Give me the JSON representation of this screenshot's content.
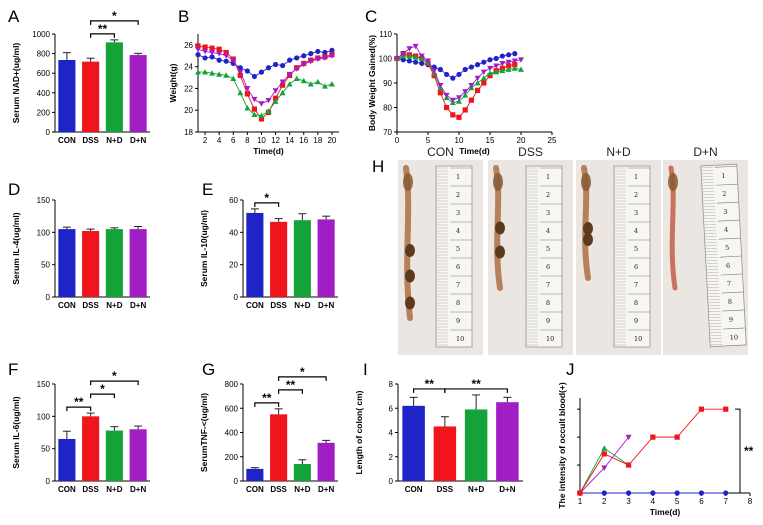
{
  "colors": {
    "CON": "#1f24c8",
    "DSS": "#f0141c",
    "N+D": "#15a339",
    "D+N": "#a11ec4",
    "err": "#222222"
  },
  "chart_data": [
    {
      "id": "A",
      "type": "bar",
      "panel_label": "A",
      "categories": [
        "CON",
        "DSS",
        "N+D",
        "D+N"
      ],
      "values": [
        735,
        718,
        915,
        785
      ],
      "errors": [
        75,
        35,
        25,
        18
      ],
      "ylabel": "Serum NAD+(ug/ml)",
      "ylim": [
        0,
        1000
      ],
      "yticks": [
        "0",
        "200",
        "400",
        "600",
        "800",
        "1000"
      ],
      "sig": [
        {
          "from": 1,
          "to": 2,
          "label": "**",
          "level": 1
        },
        {
          "from": 1,
          "to": 3,
          "label": "*",
          "level": 2
        }
      ]
    },
    {
      "id": "D",
      "type": "bar",
      "panel_label": "D",
      "categories": [
        "CON",
        "DSS",
        "N+D",
        "D+N"
      ],
      "values": [
        105,
        102,
        105,
        105
      ],
      "errors": [
        3,
        3,
        2,
        4
      ],
      "ylabel": "Serum IL-4(ug/ml)",
      "ylim": [
        0,
        150
      ],
      "yticks": [
        "0",
        "50",
        "100",
        "150"
      ],
      "sig": []
    },
    {
      "id": "E",
      "type": "bar",
      "panel_label": "E",
      "categories": [
        "CON",
        "DSS",
        "N+D",
        "D+N"
      ],
      "values": [
        52,
        46.5,
        47.5,
        48
      ],
      "errors": [
        2.5,
        2,
        4,
        2
      ],
      "ylabel": "Serum IL-10(ug/ml)",
      "ylim": [
        0,
        60
      ],
      "yticks": [
        "0",
        "20",
        "40",
        "60"
      ],
      "sig": [
        {
          "from": 0,
          "to": 1,
          "label": "*",
          "level": 1
        }
      ]
    },
    {
      "id": "F",
      "type": "bar",
      "panel_label": "F",
      "categories": [
        "CON",
        "DSS",
        "N+D",
        "D+N"
      ],
      "values": [
        65,
        100,
        78,
        80
      ],
      "errors": [
        12,
        5,
        6,
        5
      ],
      "ylabel": "Serum IL-6(ug/ml)",
      "ylim": [
        0,
        150
      ],
      "yticks": [
        "0",
        "50",
        "100",
        "150"
      ],
      "sig": [
        {
          "from": 0,
          "to": 1,
          "label": "**",
          "level": 1
        },
        {
          "from": 1,
          "to": 2,
          "label": "*",
          "level": 2
        },
        {
          "from": 1,
          "to": 3,
          "label": "*",
          "level": 3
        }
      ]
    },
    {
      "id": "G",
      "type": "bar",
      "panel_label": "G",
      "categories": [
        "CON",
        "DSS",
        "N+D",
        "D+N"
      ],
      "values": [
        100,
        550,
        140,
        315
      ],
      "errors": [
        10,
        45,
        35,
        20
      ],
      "ylabel": "SerumTNF-<(ug/ml)",
      "ylim": [
        0,
        800
      ],
      "yticks": [
        "0",
        "200",
        "400",
        "600",
        "800"
      ],
      "sig": [
        {
          "from": 0,
          "to": 1,
          "label": "**",
          "level": 1
        },
        {
          "from": 1,
          "to": 2,
          "label": "**",
          "level": 2
        },
        {
          "from": 1,
          "to": 3,
          "label": "*",
          "level": 3
        }
      ]
    },
    {
      "id": "I",
      "type": "bar",
      "panel_label": "I",
      "categories": [
        "CON",
        "DSS",
        "N+D",
        "D+N"
      ],
      "values": [
        6.2,
        4.5,
        5.9,
        6.5
      ],
      "errors": [
        0.7,
        0.8,
        1.2,
        0.4
      ],
      "ylabel": "Length of colon( cm)",
      "ylim": [
        0,
        8
      ],
      "yticks": [
        "0",
        "2",
        "4",
        "6",
        "8"
      ],
      "sig": [
        {
          "from": 0,
          "to": 1,
          "label": "**",
          "level": 1
        },
        {
          "from": 1,
          "to": 3,
          "label": "**",
          "level": 1
        }
      ]
    },
    {
      "id": "B",
      "type": "line",
      "panel_label": "B",
      "xlabel": "Time(d)",
      "ylabel": "Weight(g)",
      "xlim": [
        1,
        21
      ],
      "ylim": [
        18,
        27
      ],
      "xticks": [
        "2",
        "4",
        "6",
        "8",
        "10",
        "12",
        "14",
        "16",
        "18",
        "20"
      ],
      "yticks": [
        "18",
        "20",
        "22",
        "24",
        "26"
      ],
      "series": [
        {
          "name": "CON",
          "color": "#1f24c8",
          "marker": "circle",
          "x": [
            1,
            2,
            3,
            4,
            5,
            6,
            7,
            8,
            9,
            10,
            11,
            12,
            13,
            14,
            15,
            16,
            17,
            18,
            19,
            20
          ],
          "y": [
            25.1,
            24.8,
            24.9,
            24.6,
            24.5,
            24.3,
            23.9,
            23.6,
            23.1,
            23.5,
            23.9,
            24.2,
            24.1,
            24.6,
            24.8,
            25,
            25.2,
            25.4,
            25.3,
            25.5
          ]
        },
        {
          "name": "DSS",
          "color": "#f0141c",
          "marker": "square",
          "x": [
            1,
            2,
            3,
            4,
            5,
            6,
            7,
            8,
            9,
            10,
            11,
            12,
            13,
            14,
            15,
            16,
            17,
            18,
            19,
            20
          ],
          "y": [
            25.9,
            25.8,
            25.7,
            25.6,
            25.3,
            24.7,
            23.2,
            21.5,
            20.1,
            19.2,
            19.8,
            21.1,
            22.3,
            23.2,
            23.9,
            24.3,
            24.6,
            24.8,
            24.9,
            25.1
          ]
        },
        {
          "name": "N+D",
          "color": "#15a339",
          "marker": "triangle-up",
          "x": [
            1,
            2,
            3,
            4,
            5,
            6,
            7,
            8,
            9,
            10,
            11,
            12,
            13,
            14,
            15,
            16,
            17,
            18,
            19,
            20
          ],
          "y": [
            23.5,
            23.5,
            23.4,
            23.3,
            23.2,
            22.9,
            21.6,
            20.2,
            19.6,
            19.5,
            19.9,
            20.8,
            21.6,
            22.4,
            22.9,
            22.7,
            22.4,
            22.6,
            22.2,
            22.4
          ]
        },
        {
          "name": "D+N",
          "color": "#a11ec4",
          "marker": "triangle-down",
          "x": [
            1,
            2,
            3,
            4,
            5,
            6,
            7,
            8,
            9,
            10,
            11,
            12,
            13,
            14,
            15,
            16,
            17,
            18,
            19,
            20
          ],
          "y": [
            25.6,
            25.4,
            25.3,
            25.2,
            25,
            24.6,
            23.5,
            22,
            21,
            20.6,
            20.9,
            21.8,
            22.6,
            23.3,
            23.8,
            24.2,
            24.5,
            24.7,
            24.8,
            25
          ]
        }
      ]
    },
    {
      "id": "C",
      "type": "line",
      "panel_label": "C",
      "xlabel": "Time(d)",
      "ylabel": "Body Weight Gained(%)",
      "xlim": [
        0,
        25
      ],
      "ylim": [
        70,
        110
      ],
      "xticks": [
        "0",
        "5",
        "10",
        "15",
        "20",
        "25"
      ],
      "yticks": [
        "70",
        "80",
        "90",
        "100",
        "110"
      ],
      "series": [
        {
          "name": "CON",
          "color": "#1f24c8",
          "marker": "circle",
          "x": [
            0,
            1,
            2,
            3,
            4,
            5,
            6,
            7,
            8,
            9,
            10,
            11,
            12,
            13,
            14,
            15,
            16,
            17,
            18,
            19
          ],
          "y": [
            100,
            99.5,
            99,
            98.5,
            98,
            97.5,
            96.5,
            95.5,
            93.5,
            92,
            93.5,
            95.5,
            96.5,
            97.5,
            98.5,
            99.5,
            100,
            101,
            101.5,
            102
          ]
        },
        {
          "name": "DSS",
          "color": "#f0141c",
          "marker": "square",
          "x": [
            0,
            1,
            2,
            3,
            4,
            5,
            6,
            7,
            8,
            9,
            10,
            11,
            12,
            13,
            14,
            15,
            16,
            17,
            18,
            19
          ],
          "y": [
            100,
            102,
            101.5,
            101,
            100,
            98,
            93,
            86,
            80,
            77,
            76,
            79,
            83,
            87,
            90,
            93,
            95,
            96,
            97,
            97.5
          ]
        },
        {
          "name": "N+D",
          "color": "#15a339",
          "marker": "triangle-up",
          "x": [
            0,
            1,
            2,
            3,
            4,
            5,
            6,
            7,
            8,
            9,
            10,
            11,
            12,
            13,
            14,
            15,
            16,
            17,
            18,
            19,
            20
          ],
          "y": [
            100,
            101,
            101,
            100.5,
            100,
            98.5,
            94,
            88,
            84,
            82,
            82.5,
            85,
            88,
            90,
            92,
            94,
            94.5,
            95,
            95.5,
            96,
            95.5
          ]
        },
        {
          "name": "D+N",
          "color": "#a11ec4",
          "marker": "triangle-down",
          "x": [
            0,
            1,
            2,
            3,
            4,
            5,
            6,
            7,
            8,
            9,
            10,
            11,
            12,
            13,
            14,
            15,
            16,
            17,
            18,
            19,
            20
          ],
          "y": [
            100,
            102,
            104,
            105,
            101,
            99,
            95,
            89,
            85,
            83,
            84,
            86.5,
            89,
            92,
            94.5,
            96,
            97,
            98,
            98.5,
            99,
            99.5
          ]
        }
      ]
    },
    {
      "id": "J",
      "type": "line",
      "panel_label": "J",
      "xlabel": "Time(d)",
      "ylabel": "The intensity of occult blood(+)",
      "xlim": [
        1,
        8
      ],
      "ylim": [
        0,
        3.4
      ],
      "xticks": [
        "1",
        "2",
        "3",
        "4",
        "5",
        "6",
        "7",
        "8"
      ],
      "yticks": [],
      "sig_label": "**",
      "series": [
        {
          "name": "CON",
          "color": "#1f24c8",
          "marker": "circle",
          "x": [
            1,
            2,
            3,
            4,
            5,
            6,
            7
          ],
          "y": [
            0,
            0,
            0,
            0,
            0,
            0,
            0
          ]
        },
        {
          "name": "N+D",
          "color": "#15a339",
          "marker": "triangle-up",
          "x": [
            1,
            2,
            3
          ],
          "y": [
            0,
            1.6,
            1
          ]
        },
        {
          "name": "D+N",
          "color": "#a11ec4",
          "marker": "triangle-down",
          "x": [
            1,
            2,
            3
          ],
          "y": [
            0,
            0.9,
            2
          ]
        },
        {
          "name": "DSS",
          "color": "#f0141c",
          "marker": "square",
          "x": [
            1,
            2,
            3,
            4,
            5,
            6,
            7
          ],
          "y": [
            0,
            1.4,
            1,
            2,
            2,
            3,
            3
          ]
        }
      ]
    }
  ],
  "panel_h": {
    "label": "H",
    "groups": [
      "CON",
      "DSS",
      "N+D",
      "D+N"
    ],
    "ruler_numbers": [
      "1",
      "2",
      "3",
      "4",
      "5",
      "6",
      "7",
      "8",
      "9",
      "10"
    ]
  }
}
